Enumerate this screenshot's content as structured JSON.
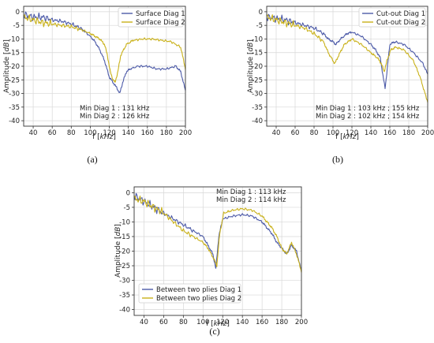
{
  "colors": {
    "diag1": "#4c5aa8",
    "diag2": "#c9b119",
    "grid": "#d7d7d7",
    "axis": "#333333"
  },
  "chart_data": [
    {
      "type": "line",
      "panel_label": "(a)",
      "xlabel": "f [kHz]",
      "xlabel_pre": "f [",
      "xlabel_unit": "kHz",
      "xlabel_post": "]",
      "ylabel": "Amplitude [dB]",
      "ylabel_pre": "Amplitude [",
      "ylabel_unit": "dB",
      "ylabel_post": "]",
      "xlim": [
        30,
        200
      ],
      "ylim": [
        -42,
        2
      ],
      "xticks": [
        "40",
        "60",
        "80",
        "100",
        "120",
        "140",
        "160",
        "180",
        "200"
      ],
      "yticks": [
        "0",
        "-5",
        "-10",
        "-15",
        "-20",
        "-25",
        "-30",
        "-35",
        "-40"
      ],
      "grid": true,
      "legend_position": "top-right",
      "annotations": [
        "Min Diag 1 : 131 kHz",
        "Min Diag 2 : 126 kHz"
      ],
      "series": [
        {
          "name": "Surface Diag 1",
          "x": [
            30,
            40,
            50,
            60,
            70,
            80,
            90,
            100,
            105,
            110,
            115,
            120,
            124,
            128,
            131,
            134,
            138,
            142,
            150,
            160,
            170,
            180,
            190,
            195,
            200
          ],
          "y": [
            -1,
            -2,
            -2,
            -3,
            -3.5,
            -4.5,
            -6,
            -9,
            -11,
            -14,
            -18,
            -24,
            -26,
            -28,
            -30,
            -26,
            -22,
            -21,
            -20,
            -20,
            -21,
            -21,
            -20,
            -22,
            -29
          ]
        },
        {
          "name": "Surface Diag 2",
          "x": [
            30,
            40,
            50,
            60,
            70,
            80,
            90,
            100,
            105,
            110,
            115,
            118,
            121,
            124,
            126,
            129,
            132,
            138,
            145,
            155,
            165,
            175,
            185,
            195,
            200
          ],
          "y": [
            -2,
            -3,
            -4,
            -4.5,
            -5,
            -5.5,
            -6.5,
            -8,
            -9,
            -10,
            -12,
            -16,
            -22,
            -25,
            -26,
            -22,
            -16,
            -12,
            -10.5,
            -10,
            -10,
            -10.5,
            -11,
            -13,
            -21
          ]
        }
      ]
    },
    {
      "type": "line",
      "panel_label": "(b)",
      "xlabel": "f [kHz]",
      "xlabel_pre": "f [",
      "xlabel_unit": "kHz",
      "xlabel_post": "]",
      "ylabel": "Amplitude [dB]",
      "ylabel_pre": "Amplitude [",
      "ylabel_unit": "dB",
      "ylabel_post": "]",
      "xlim": [
        30,
        200
      ],
      "ylim": [
        -42,
        2
      ],
      "xticks": [
        "40",
        "60",
        "80",
        "100",
        "120",
        "140",
        "160",
        "180",
        "200"
      ],
      "yticks": [
        "0",
        "-5",
        "-10",
        "-15",
        "-20",
        "-25",
        "-30",
        "-35",
        "-40"
      ],
      "grid": true,
      "legend_position": "top-right",
      "annotations": [
        "Min Diag 1 : 103 kHz ; 155 kHz",
        "Min Diag 2 : 102 kHz ; 154 kHz"
      ],
      "series": [
        {
          "name": "Cut-out Diag 1",
          "x": [
            30,
            40,
            50,
            60,
            70,
            80,
            90,
            95,
            100,
            103,
            108,
            115,
            120,
            130,
            140,
            145,
            150,
            153,
            155,
            157,
            160,
            165,
            175,
            185,
            195,
            200
          ],
          "y": [
            -2,
            -2.5,
            -3,
            -4,
            -5,
            -6,
            -8,
            -10,
            -11,
            -12,
            -10,
            -8,
            -7.5,
            -9,
            -12,
            -14,
            -17,
            -24,
            -28,
            -22,
            -12,
            -11,
            -12,
            -15,
            -19,
            -23
          ]
        },
        {
          "name": "Cut-out Diag 2",
          "x": [
            30,
            40,
            50,
            60,
            70,
            80,
            90,
            95,
            100,
            102,
            106,
            112,
            120,
            130,
            140,
            147,
            151,
            154,
            157,
            161,
            166,
            175,
            185,
            192,
            198,
            200
          ],
          "y": [
            -2,
            -3,
            -4,
            -5,
            -6,
            -8,
            -11,
            -15,
            -18,
            -19,
            -16,
            -12,
            -10,
            -12,
            -15,
            -17,
            -19,
            -22,
            -18,
            -14,
            -13,
            -14,
            -18,
            -24,
            -31,
            -33
          ]
        }
      ]
    },
    {
      "type": "line",
      "panel_label": "(c)",
      "xlabel": "f [kHz]",
      "xlabel_pre": "f [",
      "xlabel_unit": "kHz",
      "xlabel_post": "]",
      "ylabel": "Amplitude [dB]",
      "ylabel_pre": "Amplitude [",
      "ylabel_unit": "dB",
      "ylabel_post": "]",
      "xlim": [
        30,
        200
      ],
      "ylim": [
        -42,
        2
      ],
      "xticks": [
        "40",
        "60",
        "80",
        "100",
        "120",
        "140",
        "160",
        "180",
        "200"
      ],
      "yticks": [
        "0",
        "-5",
        "-10",
        "-15",
        "-20",
        "-25",
        "-30",
        "-35",
        "-40"
      ],
      "grid": true,
      "legend_position": "bottom-left",
      "annotations": [
        "Min Diag 1 : 113 kHz",
        "Min Diag 2 : 114 kHz"
      ],
      "series": [
        {
          "name": "Between two plies Diag 1",
          "x": [
            30,
            40,
            50,
            60,
            70,
            80,
            90,
            100,
            105,
            110,
            113,
            116,
            120,
            130,
            140,
            150,
            160,
            165,
            170,
            175,
            180,
            185,
            190,
            195,
            200
          ],
          "y": [
            -1,
            -3,
            -5,
            -7,
            -9,
            -11,
            -13,
            -15,
            -18,
            -21,
            -26,
            -15,
            -9,
            -8,
            -7.5,
            -8,
            -10,
            -12,
            -14,
            -17,
            -19,
            -21,
            -18,
            -20,
            -27
          ]
        },
        {
          "name": "Between two plies Diag 2",
          "x": [
            30,
            40,
            50,
            60,
            70,
            80,
            90,
            100,
            105,
            110,
            114,
            117,
            121,
            130,
            140,
            150,
            160,
            165,
            170,
            175,
            180,
            185,
            190,
            195,
            200
          ],
          "y": [
            -2,
            -3,
            -5,
            -7,
            -10,
            -13,
            -15,
            -17,
            -19,
            -22,
            -25,
            -14,
            -7,
            -6,
            -5.5,
            -6,
            -8,
            -10,
            -12,
            -15,
            -19,
            -21,
            -17,
            -21,
            -27
          ]
        }
      ]
    }
  ]
}
